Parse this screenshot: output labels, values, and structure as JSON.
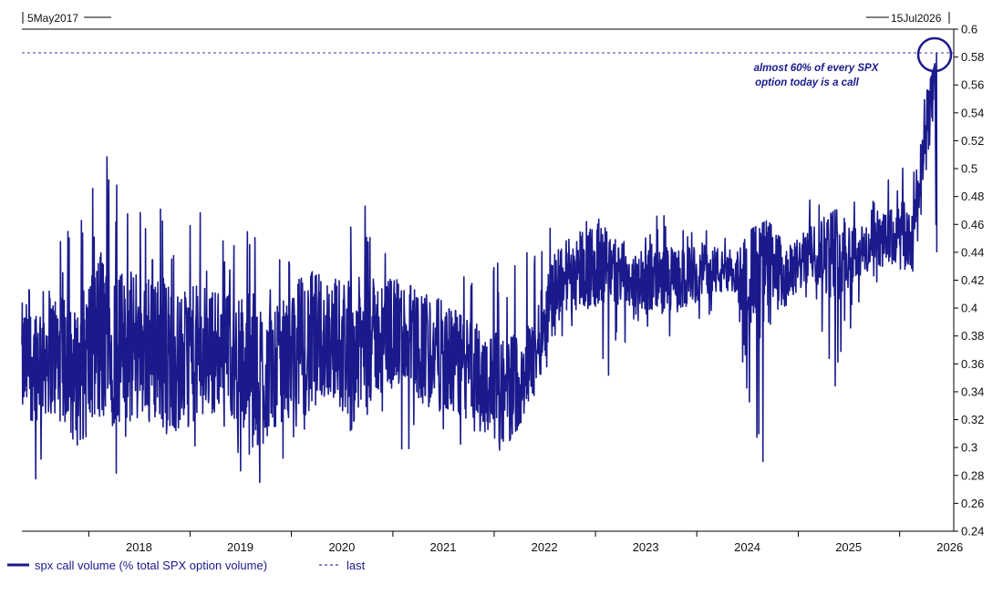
{
  "chart_data": {
    "type": "line",
    "range_start_label": "5May2017",
    "range_end_label": "15Jul2026",
    "x_ticks": [
      "2018",
      "2019",
      "2020",
      "2021",
      "2022",
      "2023",
      "2024",
      "2025",
      "2026"
    ],
    "y_ticks": [
      "0.6",
      "0.58",
      "0.56",
      "0.54",
      "0.52",
      "0.5",
      "0.48",
      "0.46",
      "0.44",
      "0.42",
      "0.4",
      "0.38",
      "0.36",
      "0.34",
      "0.32",
      "0.3",
      "0.28",
      "0.26",
      "0.24"
    ],
    "ylim": [
      0.24,
      0.6
    ],
    "xlim": [
      "2017-05-05",
      "2026-07-15"
    ],
    "y_axis_position": "right",
    "grid": false,
    "legend_position": "bottom-left",
    "annotation": {
      "line1": "almost 60% of every SPX",
      "line2": "option today is a call"
    },
    "last_value": 0.583,
    "colors": {
      "series": "#1a1a8c",
      "last_line": "#3a3ab0",
      "axis": "#000000"
    },
    "series": [
      {
        "name": "spx call volume (% total SPX option volume)",
        "x": [
          "2017-05",
          "2017-08",
          "2017-11",
          "2018-02",
          "2018-05",
          "2018-08",
          "2018-11",
          "2019-02",
          "2019-05",
          "2019-08",
          "2019-11",
          "2020-02",
          "2020-05",
          "2020-08",
          "2020-11",
          "2021-02",
          "2021-05",
          "2021-08",
          "2021-11",
          "2022-02",
          "2022-05",
          "2022-08",
          "2022-11",
          "2023-02",
          "2023-05",
          "2023-08",
          "2023-11",
          "2024-02",
          "2024-05",
          "2024-08",
          "2024-11",
          "2025-02",
          "2025-05",
          "2025-08",
          "2025-11",
          "2026-02",
          "2026-05"
        ],
        "values": [
          0.36,
          0.37,
          0.35,
          0.38,
          0.37,
          0.38,
          0.36,
          0.37,
          0.37,
          0.35,
          0.36,
          0.37,
          0.38,
          0.37,
          0.38,
          0.38,
          0.37,
          0.36,
          0.35,
          0.34,
          0.36,
          0.42,
          0.43,
          0.43,
          0.42,
          0.42,
          0.42,
          0.43,
          0.42,
          0.43,
          0.42,
          0.44,
          0.44,
          0.44,
          0.45,
          0.45,
          0.583
        ],
        "high": [
          0.42,
          0.44,
          0.47,
          0.52,
          0.47,
          0.52,
          0.46,
          0.47,
          0.45,
          0.49,
          0.44,
          0.5,
          0.47,
          0.49,
          0.46,
          0.44,
          0.45,
          0.43,
          0.44,
          0.43,
          0.45,
          0.46,
          0.49,
          0.46,
          0.45,
          0.47,
          0.46,
          0.46,
          0.45,
          0.46,
          0.47,
          0.48,
          0.47,
          0.48,
          0.49,
          0.52,
          0.58
        ],
        "low": [
          0.26,
          0.27,
          0.29,
          0.27,
          0.28,
          0.29,
          0.28,
          0.29,
          0.3,
          0.26,
          0.29,
          0.29,
          0.31,
          0.3,
          0.31,
          0.29,
          0.3,
          0.29,
          0.3,
          0.29,
          0.33,
          0.37,
          0.38,
          0.35,
          0.38,
          0.38,
          0.38,
          0.39,
          0.4,
          0.27,
          0.39,
          0.41,
          0.34,
          0.41,
          0.42,
          0.41,
          0.44
        ]
      },
      {
        "name": "last"
      }
    ]
  }
}
